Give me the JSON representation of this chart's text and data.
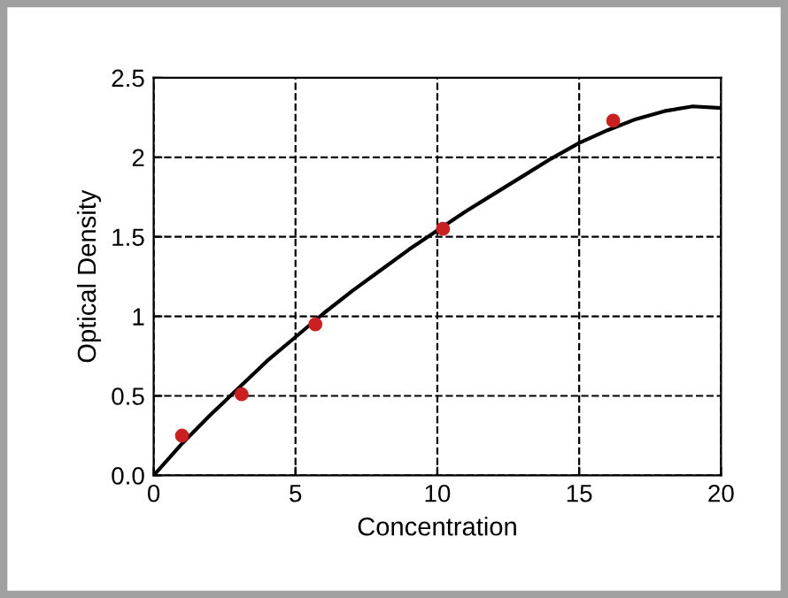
{
  "chart_data": {
    "type": "scatter",
    "xlabel": "Concentration",
    "ylabel": "Optical Density",
    "xlim": [
      0,
      20
    ],
    "xticks": [
      0,
      5,
      10,
      15,
      20
    ],
    "ylim": [
      0,
      2.5
    ],
    "yticks": [
      {
        "value": 0,
        "label": "0.0"
      },
      0.5,
      1,
      1.5,
      2,
      2.5
    ],
    "grid": true,
    "marker": "circle",
    "series": [
      {
        "color": "#cc2020",
        "x": [
          1,
          3.1,
          5.7,
          10.2,
          16.2
        ],
        "values": [
          0.25,
          0.51,
          0.95,
          1.55,
          2.23
        ]
      },
      {
        "type": "line",
        "color": "#000000",
        "marker": "none",
        "line_style": "solid",
        "x": [
          0,
          1,
          2,
          3,
          4,
          5,
          6,
          7,
          8,
          9,
          10,
          11,
          12,
          13,
          14,
          15,
          16,
          17,
          18,
          19,
          20
        ],
        "values": [
          0,
          0.2,
          0.38,
          0.55,
          0.72,
          0.87,
          1.02,
          1.16,
          1.29,
          1.42,
          1.54,
          1.66,
          1.77,
          1.88,
          1.99,
          2.09,
          2.17,
          2.24,
          2.29,
          2.32,
          2.31
        ]
      }
    ]
  }
}
